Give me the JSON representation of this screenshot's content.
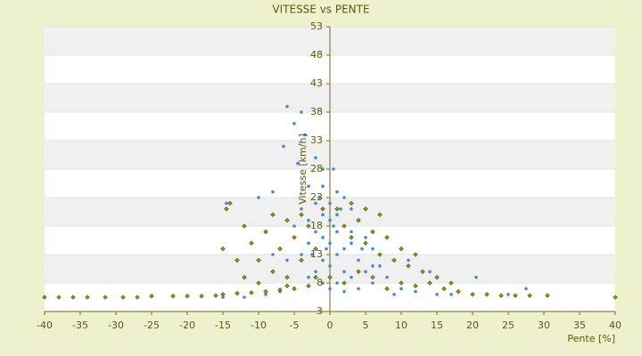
{
  "chart_data": {
    "type": "scatter",
    "title": "VITESSE vs PENTE",
    "x_label": "Pente [%]",
    "y_label": "Vitesse [km/h]",
    "xlim": [
      -40,
      40
    ],
    "xticks": [
      -40,
      -35,
      -30,
      -25,
      -20,
      -15,
      -10,
      -5,
      0,
      5,
      10,
      15,
      20,
      25,
      30,
      35,
      40
    ],
    "ylim": [
      3,
      53
    ],
    "yticks": [
      3,
      8,
      13,
      18,
      23,
      28,
      33,
      38,
      43,
      48,
      53
    ],
    "grid": true,
    "series": [
      {
        "color": "#3a8fd9",
        "x": [
          -6,
          -4,
          -5,
          -3.5,
          -6.5,
          -2,
          -4.5,
          -1,
          0.5,
          -8,
          -10,
          -3,
          -1,
          1,
          2,
          -2,
          0,
          3,
          -4,
          -1,
          1,
          4,
          -3,
          0,
          2,
          -5,
          -2,
          1,
          5,
          -1,
          3,
          0,
          -3,
          2,
          6,
          -4,
          1,
          4,
          -1,
          7,
          0,
          2,
          -2,
          5,
          3,
          8,
          -3,
          1,
          6,
          -1,
          10,
          4,
          -5,
          0,
          12,
          2,
          -7,
          15,
          20,
          -12,
          -15,
          17,
          25,
          27.5,
          20.5,
          -14.5,
          -8,
          -6,
          9,
          -9,
          14,
          11,
          -0.5,
          0.5,
          1.5,
          -1.5,
          3,
          -2.5,
          4.5,
          6
        ],
        "values": [
          39,
          38,
          36,
          34,
          32,
          30,
          29,
          28,
          28,
          24,
          23,
          25,
          25,
          24,
          23,
          22,
          22,
          21,
          21,
          20,
          20,
          19,
          19,
          19,
          18,
          18,
          17,
          17,
          16,
          16,
          15,
          15,
          15,
          14,
          14,
          13,
          13,
          12,
          12,
          11,
          11,
          10,
          10,
          10,
          9,
          9,
          9,
          8,
          8,
          8,
          7,
          7,
          7,
          7,
          6.5,
          6.5,
          6.5,
          6,
          6,
          5.5,
          5.5,
          6,
          6,
          7,
          9,
          22,
          13,
          12,
          6,
          6,
          10,
          12,
          14,
          18,
          21,
          23,
          17,
          13,
          14,
          11
        ]
      },
      {
        "color": "#9a9a10",
        "x": [
          -40,
          -38,
          -36,
          -34,
          -31.5,
          -29,
          -27,
          -25,
          -22,
          -20,
          -18,
          -16,
          -15,
          -13,
          -11,
          -9,
          -7,
          -5,
          -3,
          -14,
          -14.5,
          -15,
          -12,
          -11,
          -10,
          -9,
          -8,
          -8,
          -7,
          -6,
          -6,
          -5,
          -4,
          -4,
          -3,
          -2,
          -1,
          1,
          2,
          3,
          4,
          5,
          6,
          7,
          8,
          9,
          10,
          11,
          12,
          13,
          14,
          15,
          16,
          17,
          18,
          20,
          22,
          24,
          26,
          28,
          30.5,
          40,
          8,
          6,
          4,
          2,
          0,
          -2,
          -10,
          -12,
          -13,
          -6,
          10,
          12,
          7,
          5,
          3
        ],
        "values": [
          5.5,
          5.5,
          5.5,
          5.5,
          5.5,
          5.5,
          5.5,
          5.7,
          5.7,
          5.7,
          5.7,
          5.8,
          6,
          6.2,
          6.3,
          6.5,
          6.8,
          7,
          7.5,
          22,
          21,
          14,
          18,
          15,
          12,
          17,
          20,
          10,
          14,
          19,
          9,
          16,
          12,
          20,
          18,
          14,
          21,
          21,
          18,
          16,
          19,
          15,
          17,
          13,
          16,
          12,
          14,
          11,
          13,
          10,
          8,
          9,
          7,
          8,
          6.5,
          6,
          6,
          5.8,
          5.8,
          5.8,
          5.8,
          5.5,
          7,
          9,
          10,
          8,
          9,
          9,
          8,
          9,
          12,
          7.5,
          8,
          7.5,
          20,
          21,
          22
        ]
      }
    ]
  }
}
